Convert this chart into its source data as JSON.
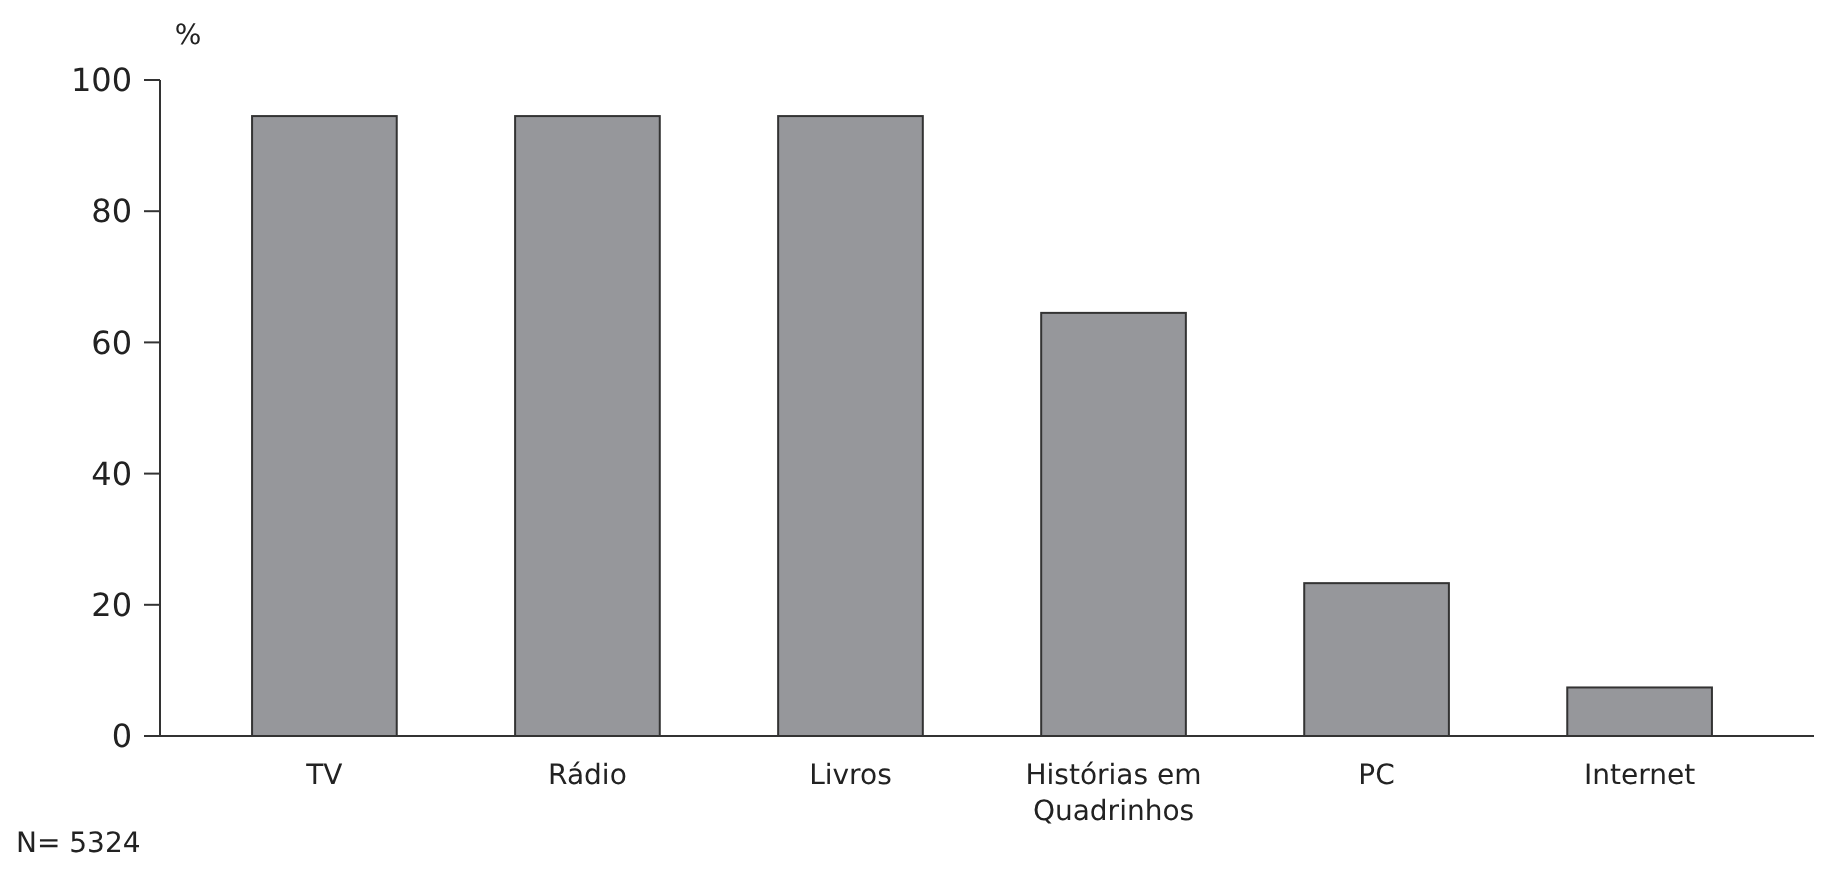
{
  "chart_data": {
    "type": "bar",
    "ylabel": "%",
    "categories": [
      "TV",
      "Rádio",
      "Livros",
      "Histórias em Quadrinhos",
      "PC",
      "Internet"
    ],
    "values": [
      94.5,
      94.5,
      94.5,
      64.5,
      23.3,
      7.4
    ],
    "color": "#96979b",
    "ylim": [
      0,
      100
    ],
    "yticks": [
      0,
      20,
      40,
      60,
      80,
      100
    ],
    "grid": false,
    "annotations": [
      "N= 5324"
    ]
  }
}
